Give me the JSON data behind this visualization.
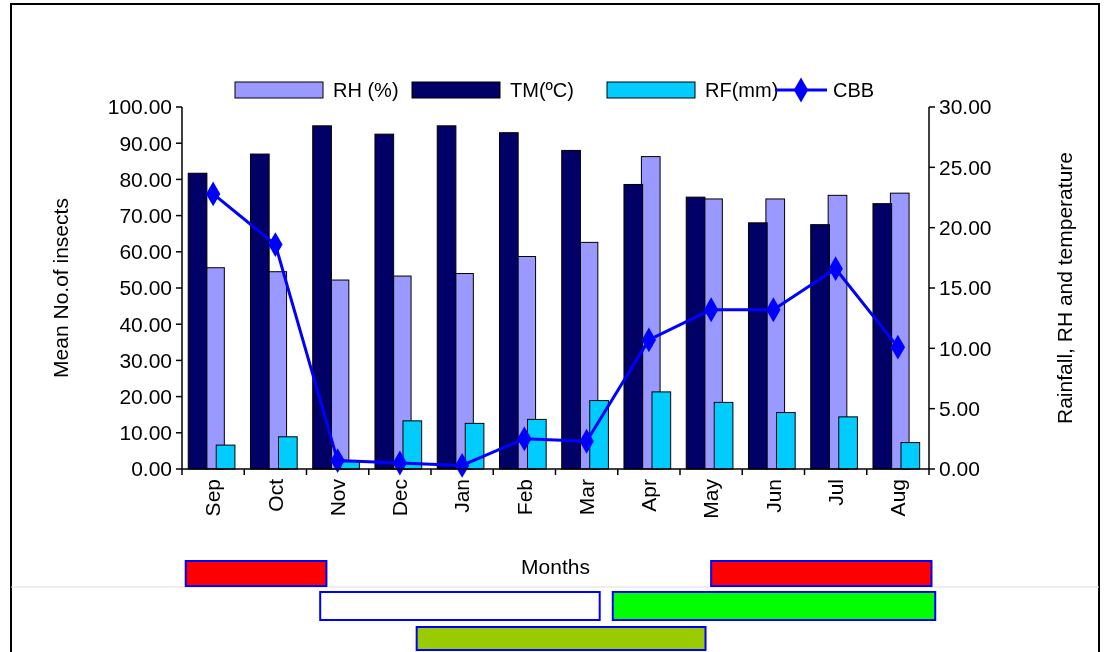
{
  "chart_data": {
    "type": "bar",
    "xlabel": "Months",
    "ylabel": "Mean No.of insects",
    "y2label": "Rainfall, RH and temperature",
    "categories": [
      "Sep",
      "Oct",
      "Nov",
      "Dec",
      "Jan",
      "Feb",
      "Mar",
      "Apr",
      "May",
      "Jun",
      "Jul",
      "Aug"
    ],
    "series": [
      {
        "name": "RH (%)",
        "color": "#9999ff",
        "values": [
          55.6,
          54.5,
          52.2,
          53.3,
          54.0,
          58.7,
          62.6,
          86.3,
          74.6,
          74.6,
          75.6,
          76.2
        ]
      },
      {
        "name": "TM(ºC)",
        "color": "#000066",
        "values": [
          81.7,
          87.0,
          94.8,
          92.5,
          94.8,
          92.9,
          88.0,
          78.6,
          75.1,
          68.0,
          67.5,
          73.3
        ]
      },
      {
        "name": "RF(mm)",
        "color": "#00ccff",
        "values": [
          6.6,
          8.9,
          2.0,
          13.3,
          12.6,
          13.7,
          18.9,
          21.3,
          18.4,
          15.6,
          14.4,
          7.3
        ]
      },
      {
        "name": "CBB",
        "type": "line",
        "axis": "y2",
        "color": "#0000ff",
        "marker": "diamond",
        "values": [
          22.8,
          18.6,
          0.7,
          0.5,
          0.3,
          2.5,
          2.3,
          10.7,
          13.2,
          13.2,
          16.6,
          10.1
        ]
      }
    ],
    "ylim": [
      0,
      100
    ],
    "yticks": [
      {
        "value": 0,
        "label": "0.00"
      },
      {
        "value": 10,
        "label": "10.00"
      },
      {
        "value": 20,
        "label": "20.00"
      },
      {
        "value": 30,
        "label": "30.00"
      },
      {
        "value": 40,
        "label": "40.00"
      },
      {
        "value": 50,
        "label": "50.00"
      },
      {
        "value": 60,
        "label": "60.00"
      },
      {
        "value": 70,
        "label": "70.00"
      },
      {
        "value": 80,
        "label": "80.00"
      },
      {
        "value": 90,
        "label": "90.00"
      },
      {
        "value": 100,
        "label": "100.00"
      }
    ],
    "y2lim": [
      0,
      30
    ],
    "y2ticks": [
      {
        "value": 0,
        "label": "0.00"
      },
      {
        "value": 5,
        "label": "5.00"
      },
      {
        "value": 10,
        "label": "10.00"
      },
      {
        "value": 15,
        "label": "15.00"
      },
      {
        "value": 20,
        "label": "20.00"
      },
      {
        "value": 25,
        "label": "25.00"
      },
      {
        "value": 30,
        "label": "30.00"
      }
    ],
    "grid": false,
    "legend": "top"
  }
}
